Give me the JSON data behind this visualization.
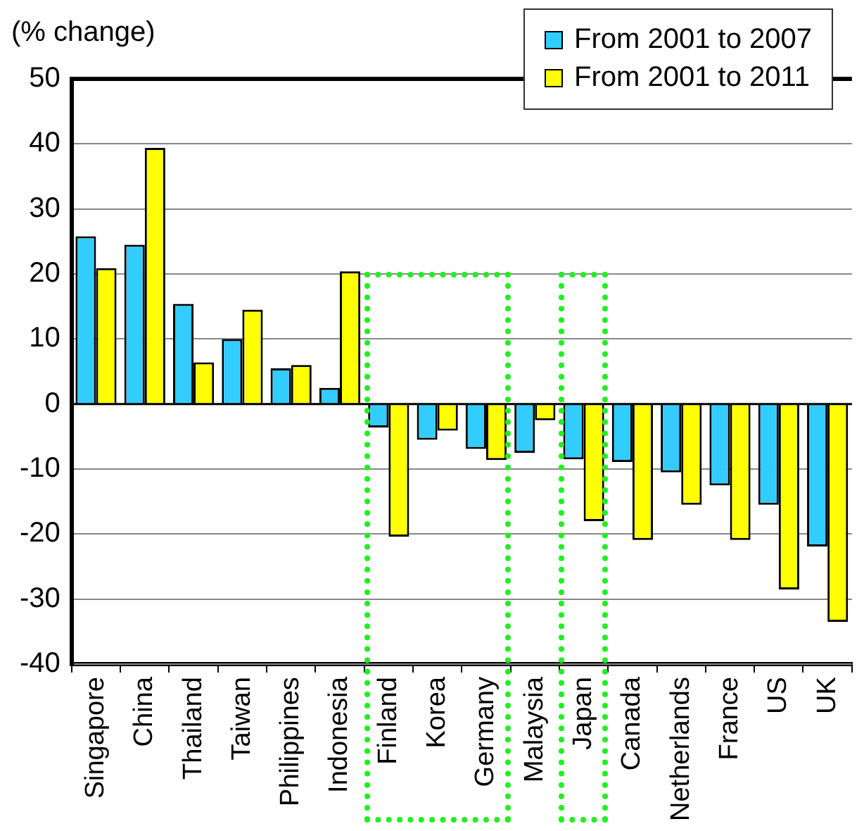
{
  "chart_data": {
    "type": "bar",
    "ylabel": "(% change)",
    "categories": [
      "Singapore",
      "China",
      "Thailand",
      "Taiwan",
      "Philippines",
      "Indonesia",
      "Finland",
      "Korea",
      "Germany",
      "Malaysia",
      "Japan",
      "Canada",
      "Netherlands",
      "France",
      "US",
      "UK"
    ],
    "series": [
      {
        "name": "From 2001 to 2007",
        "color": "#33ccff",
        "values": [
          25.8,
          24.5,
          15.4,
          10,
          5.5,
          2.5,
          -3.6,
          -5.5,
          -6.9,
          -7.5,
          -8.5,
          -8.9,
          -10.5,
          -12.5,
          -15.5,
          -21.9
        ]
      },
      {
        "name": "From 2001 to 2011",
        "color": "#ffff00",
        "values": [
          20.9,
          39.4,
          6.4,
          14.5,
          6,
          20.4,
          -20.4,
          -4.1,
          -8.6,
          -2.5,
          -18,
          -20.9,
          -15.5,
          -20.9,
          -28.5,
          -33.5
        ]
      }
    ],
    "ylim": [
      -40,
      50
    ],
    "yticks": [
      -40,
      -30,
      -20,
      -10,
      0,
      10,
      20,
      30,
      40,
      50
    ],
    "grid": "y",
    "legend": "top right"
  }
}
